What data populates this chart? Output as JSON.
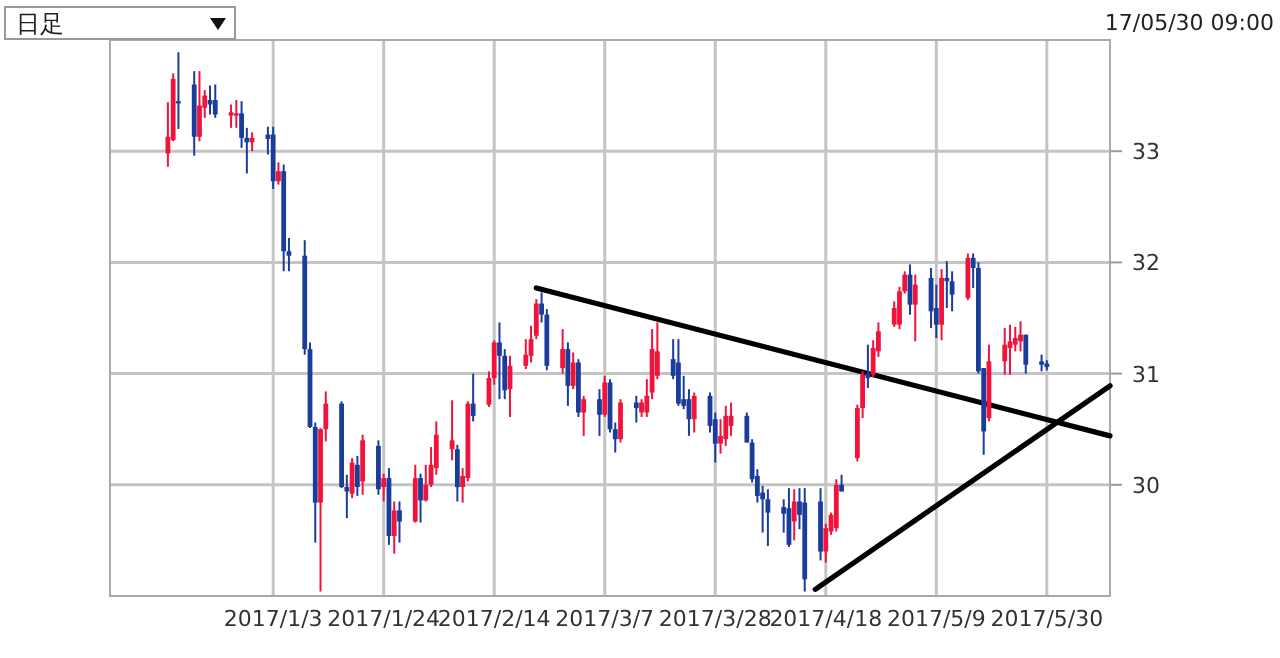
{
  "chart_data": {
    "type": "candlestick",
    "title": "日足",
    "subtitle": "17/05/30 09:00",
    "xlim": [
      "2016-12-03",
      "2017-06-11"
    ],
    "xticks": [
      {
        "value": "2017-01-03",
        "label": "2017/1/3"
      },
      {
        "value": "2017-01-24",
        "label": "2017/1/24"
      },
      {
        "value": "2017-02-14",
        "label": "2017/2/14"
      },
      {
        "value": "2017-03-07",
        "label": "2017/3/7"
      },
      {
        "value": "2017-03-28",
        "label": "2017/3/28"
      },
      {
        "value": "2017-04-18",
        "label": "2017/4/18"
      },
      {
        "value": "2017-05-09",
        "label": "2017/5/9"
      },
      {
        "value": "2017-05-30",
        "label": "2017/5/30"
      }
    ],
    "ylim": [
      29,
      34
    ],
    "yticks": [
      30,
      31,
      32,
      33
    ],
    "grid": true,
    "series": [
      {
        "x": [
          "2016-12-14",
          "2016-12-15",
          "2016-12-16",
          "2016-12-19",
          "2016-12-20",
          "2016-12-21",
          "2016-12-22",
          "2016-12-23",
          "2016-12-26",
          "2016-12-27",
          "2016-12-28",
          "2016-12-29",
          "2016-12-30",
          "2017-01-02",
          "2017-01-03",
          "2017-01-04",
          "2017-01-05",
          "2017-01-06",
          "2017-01-09",
          "2017-01-10",
          "2017-01-11",
          "2017-01-12",
          "2017-01-13",
          "2017-01-16",
          "2017-01-17",
          "2017-01-18",
          "2017-01-19",
          "2017-01-20",
          "2017-01-23",
          "2017-01-24",
          "2017-01-25",
          "2017-01-26",
          "2017-01-27",
          "2017-01-30",
          "2017-01-31",
          "2017-02-01",
          "2017-02-02",
          "2017-02-03",
          "2017-02-06",
          "2017-02-07",
          "2017-02-08",
          "2017-02-09",
          "2017-02-10",
          "2017-02-13",
          "2017-02-14",
          "2017-02-15",
          "2017-02-16",
          "2017-02-17",
          "2017-02-20",
          "2017-02-21",
          "2017-02-22",
          "2017-02-23",
          "2017-02-24",
          "2017-02-27",
          "2017-02-28",
          "2017-03-01",
          "2017-03-02",
          "2017-03-03",
          "2017-03-06",
          "2017-03-07",
          "2017-03-08",
          "2017-03-09",
          "2017-03-10",
          "2017-03-13",
          "2017-03-14",
          "2017-03-15",
          "2017-03-16",
          "2017-03-17",
          "2017-03-20",
          "2017-03-21",
          "2017-03-22",
          "2017-03-23",
          "2017-03-24",
          "2017-03-27",
          "2017-03-28",
          "2017-03-29",
          "2017-03-30",
          "2017-03-31",
          "2017-04-03",
          "2017-04-04",
          "2017-04-05",
          "2017-04-06",
          "2017-04-07",
          "2017-04-10",
          "2017-04-11",
          "2017-04-12",
          "2017-04-13",
          "2017-04-14",
          "2017-04-17",
          "2017-04-18",
          "2017-04-19",
          "2017-04-20",
          "2017-04-21",
          "2017-04-24",
          "2017-04-25",
          "2017-04-26",
          "2017-04-27",
          "2017-04-28",
          "2017-05-01",
          "2017-05-02",
          "2017-05-03",
          "2017-05-04",
          "2017-05-05",
          "2017-05-08",
          "2017-05-09",
          "2017-05-10",
          "2017-05-11",
          "2017-05-12",
          "2017-05-15",
          "2017-05-16",
          "2017-05-17",
          "2017-05-18",
          "2017-05-19",
          "2017-05-22",
          "2017-05-23",
          "2017-05-24",
          "2017-05-25",
          "2017-05-26",
          "2017-05-29",
          "2017-05-30"
        ],
        "ohlc": [
          [
            32.98,
            33.44,
            32.86,
            33.13
          ],
          [
            33.1,
            33.7,
            33.09,
            33.65
          ],
          [
            33.45,
            33.89,
            33.2,
            33.43
          ],
          [
            33.6,
            33.72,
            32.96,
            33.13
          ],
          [
            33.13,
            33.72,
            33.09,
            33.41
          ],
          [
            33.39,
            33.55,
            33.3,
            33.5
          ],
          [
            33.46,
            33.59,
            33.33,
            33.42
          ],
          [
            33.46,
            33.6,
            33.3,
            33.33
          ],
          [
            33.32,
            33.42,
            33.21,
            33.35
          ],
          [
            33.32,
            33.46,
            33.21,
            33.34
          ],
          [
            33.34,
            33.45,
            33.03,
            33.12
          ],
          [
            33.12,
            33.21,
            32.8,
            33.08
          ],
          [
            33.08,
            33.17,
            33.0,
            33.12
          ],
          [
            33.15,
            33.22,
            32.97,
            33.11
          ],
          [
            33.15,
            33.22,
            32.66,
            32.73
          ],
          [
            32.73,
            32.9,
            32.7,
            32.82
          ],
          [
            32.82,
            32.88,
            31.92,
            32.1
          ],
          [
            32.1,
            32.22,
            31.92,
            32.06
          ],
          [
            32.06,
            32.2,
            31.17,
            31.22
          ],
          [
            31.22,
            31.28,
            30.51,
            30.52
          ],
          [
            30.52,
            30.56,
            29.48,
            29.84
          ],
          [
            29.84,
            30.51,
            29.04,
            30.5
          ],
          [
            30.5,
            30.84,
            30.39,
            30.73
          ],
          [
            30.73,
            30.75,
            29.97,
            29.98
          ],
          [
            29.98,
            30.09,
            29.7,
            29.94
          ],
          [
            29.92,
            30.24,
            29.88,
            30.2
          ],
          [
            30.18,
            30.26,
            29.9,
            29.98
          ],
          [
            30.03,
            30.45,
            29.91,
            30.4
          ],
          [
            30.35,
            30.4,
            29.91,
            29.96
          ],
          [
            29.98,
            30.1,
            29.85,
            30.06
          ],
          [
            30.06,
            30.15,
            29.46,
            29.54
          ],
          [
            29.54,
            29.85,
            29.38,
            29.77
          ],
          [
            29.77,
            29.85,
            29.48,
            29.67
          ],
          [
            29.67,
            30.18,
            29.66,
            30.06
          ],
          [
            30.06,
            30.1,
            29.66,
            29.86
          ],
          [
            29.86,
            30.18,
            29.85,
            30.0
          ],
          [
            30.0,
            30.34,
            29.98,
            30.18
          ],
          [
            30.15,
            30.57,
            30.09,
            30.45
          ],
          [
            30.32,
            30.76,
            30.22,
            30.4
          ],
          [
            30.32,
            30.36,
            29.85,
            29.98
          ],
          [
            29.98,
            30.15,
            29.84,
            30.08
          ],
          [
            30.06,
            30.75,
            30.03,
            30.73
          ],
          [
            30.73,
            31.0,
            30.57,
            30.62
          ],
          [
            30.72,
            31.02,
            30.7,
            30.96
          ],
          [
            30.96,
            31.3,
            30.9,
            31.28
          ],
          [
            31.28,
            31.46,
            30.77,
            31.16
          ],
          [
            31.16,
            31.22,
            30.77,
            30.85
          ],
          [
            30.86,
            31.16,
            30.61,
            31.07
          ],
          [
            31.07,
            31.31,
            31.04,
            31.17
          ],
          [
            31.16,
            31.43,
            31.1,
            31.31
          ],
          [
            31.34,
            31.67,
            31.31,
            31.63
          ],
          [
            31.63,
            31.73,
            31.46,
            31.53
          ],
          [
            31.53,
            31.58,
            31.03,
            31.07
          ],
          [
            31.05,
            31.4,
            31.0,
            31.22
          ],
          [
            31.22,
            31.28,
            30.71,
            30.89
          ],
          [
            30.89,
            31.19,
            30.86,
            31.1
          ],
          [
            31.1,
            31.13,
            30.61,
            30.65
          ],
          [
            30.65,
            30.8,
            30.44,
            30.77
          ],
          [
            30.77,
            30.86,
            30.44,
            30.63
          ],
          [
            30.63,
            30.98,
            30.61,
            30.92
          ],
          [
            30.92,
            30.95,
            30.47,
            30.5
          ],
          [
            30.5,
            30.56,
            30.29,
            30.41
          ],
          [
            30.41,
            30.77,
            30.38,
            30.74
          ],
          [
            30.74,
            30.8,
            30.56,
            30.69
          ],
          [
            30.65,
            30.77,
            30.61,
            30.74
          ],
          [
            30.65,
            30.95,
            30.61,
            30.8
          ],
          [
            30.83,
            31.4,
            30.77,
            31.22
          ],
          [
            30.98,
            31.46,
            30.95,
            31.2
          ],
          [
            31.13,
            31.31,
            30.95,
            30.98
          ],
          [
            31.1,
            31.31,
            30.71,
            30.73
          ],
          [
            30.77,
            30.98,
            30.68,
            30.71
          ],
          [
            30.77,
            30.86,
            30.44,
            30.59
          ],
          [
            30.59,
            30.83,
            30.47,
            30.8
          ],
          [
            30.8,
            30.83,
            30.47,
            30.53
          ],
          [
            30.59,
            30.65,
            30.2,
            30.37
          ],
          [
            30.37,
            30.59,
            30.28,
            30.44
          ],
          [
            30.41,
            30.71,
            30.35,
            30.62
          ],
          [
            30.53,
            30.74,
            30.44,
            30.62
          ],
          [
            30.62,
            30.65,
            30.38,
            30.38
          ],
          [
            30.38,
            30.41,
            30.02,
            30.05
          ],
          [
            30.08,
            30.14,
            29.84,
            29.9
          ],
          [
            29.93,
            29.99,
            29.57,
            29.87
          ],
          [
            29.87,
            29.96,
            29.45,
            29.75
          ],
          [
            29.8,
            29.87,
            29.57,
            29.74
          ],
          [
            29.79,
            29.97,
            29.44,
            29.46
          ],
          [
            29.67,
            29.96,
            29.5,
            29.85
          ],
          [
            29.85,
            29.97,
            29.6,
            29.73
          ],
          [
            29.84,
            29.97,
            29.04,
            29.15
          ],
          [
            29.85,
            29.97,
            29.32,
            29.4
          ],
          [
            29.4,
            29.65,
            29.3,
            29.61
          ],
          [
            29.58,
            29.75,
            29.55,
            29.73
          ],
          [
            29.61,
            30.05,
            29.58,
            30.0
          ],
          [
            30.0,
            30.09,
            29.94,
            29.94
          ],
          [
            30.24,
            30.72,
            30.21,
            30.69
          ],
          [
            30.69,
            31.02,
            30.6,
            30.99
          ],
          [
            31.0,
            31.26,
            30.87,
            30.96
          ],
          [
            30.99,
            31.3,
            30.97,
            31.23
          ],
          [
            31.2,
            31.46,
            31.15,
            31.38
          ],
          [
            31.44,
            31.65,
            31.42,
            31.59
          ],
          [
            31.44,
            31.78,
            31.4,
            31.74
          ],
          [
            31.74,
            31.92,
            31.72,
            31.89
          ],
          [
            31.89,
            31.98,
            31.53,
            31.62
          ],
          [
            31.62,
            31.89,
            31.29,
            31.8
          ],
          [
            31.86,
            31.95,
            31.41,
            31.56
          ],
          [
            31.59,
            31.8,
            31.32,
            31.44
          ],
          [
            31.44,
            31.94,
            31.3,
            31.86
          ],
          [
            31.86,
            32.01,
            31.59,
            31.83
          ],
          [
            31.83,
            31.92,
            31.56,
            31.71
          ],
          [
            31.68,
            32.08,
            31.66,
            32.04
          ],
          [
            32.04,
            32.08,
            31.77,
            31.95
          ],
          [
            31.95,
            32.0,
            31.0,
            31.02
          ],
          [
            31.05,
            31.05,
            30.27,
            30.48
          ],
          [
            30.6,
            31.26,
            30.57,
            31.11
          ],
          [
            31.11,
            31.41,
            30.99,
            31.26
          ],
          [
            31.23,
            31.44,
            30.99,
            31.29
          ],
          [
            31.26,
            31.42,
            31.2,
            31.32
          ],
          [
            31.29,
            31.47,
            31.2,
            31.35
          ],
          [
            31.35,
            31.35,
            31.0,
            31.08
          ],
          [
            31.11,
            31.17,
            31.02,
            31.08
          ],
          [
            31.09,
            31.12,
            31.03,
            31.06
          ]
        ],
        "colors": [
          "#f0143c",
          "#f0143c",
          "#1a3d9c",
          "#1a3d9c",
          "#f0143c",
          "#f0143c",
          "#1a3d9c",
          "#1a3d9c",
          "#f0143c",
          "#f0143c",
          "#1a3d9c",
          "#1a3d9c",
          "#f0143c",
          "#1a3d9c",
          "#1a3d9c",
          "#f0143c",
          "#1a3d9c",
          "#1a3d9c",
          "#1a3d9c",
          "#1a3d9c",
          "#1a3d9c",
          "#f0143c",
          "#f0143c",
          "#1a3d9c",
          "#1a3d9c",
          "#f0143c",
          "#1a3d9c",
          "#f0143c",
          "#1a3d9c",
          "#f0143c",
          "#1a3d9c",
          "#f0143c",
          "#1a3d9c",
          "#f0143c",
          "#1a3d9c",
          "#f0143c",
          "#f0143c",
          "#f0143c",
          "#f0143c",
          "#1a3d9c",
          "#f0143c",
          "#f0143c",
          "#1a3d9c",
          "#f0143c",
          "#f0143c",
          "#1a3d9c",
          "#1a3d9c",
          "#f0143c",
          "#f0143c",
          "#f0143c",
          "#f0143c",
          "#1a3d9c",
          "#1a3d9c",
          "#f0143c",
          "#1a3d9c",
          "#f0143c",
          "#1a3d9c",
          "#f0143c",
          "#1a3d9c",
          "#f0143c",
          "#1a3d9c",
          "#1a3d9c",
          "#f0143c",
          "#1a3d9c",
          "#f0143c",
          "#f0143c",
          "#f0143c",
          "#f0143c",
          "#1a3d9c",
          "#1a3d9c",
          "#1a3d9c",
          "#1a3d9c",
          "#f0143c",
          "#1a3d9c",
          "#1a3d9c",
          "#f0143c",
          "#f0143c",
          "#f0143c",
          "#1a3d9c",
          "#1a3d9c",
          "#1a3d9c",
          "#1a3d9c",
          "#1a3d9c",
          "#1a3d9c",
          "#1a3d9c",
          "#f0143c",
          "#1a3d9c",
          "#1a3d9c",
          "#1a3d9c",
          "#f0143c",
          "#f0143c",
          "#f0143c",
          "#1a3d9c",
          "#f0143c",
          "#f0143c",
          "#1a3d9c",
          "#f0143c",
          "#f0143c",
          "#f0143c",
          "#f0143c",
          "#f0143c",
          "#1a3d9c",
          "#f0143c",
          "#1a3d9c",
          "#1a3d9c",
          "#f0143c",
          "#1a3d9c",
          "#1a3d9c",
          "#f0143c",
          "#1a3d9c",
          "#1a3d9c",
          "#1a3d9c",
          "#f0143c",
          "#f0143c",
          "#f0143c",
          "#f0143c",
          "#f0143c",
          "#1a3d9c",
          "#1a3d9c",
          "#1a3d9c"
        ]
      },
      {
        "type": "line",
        "color": "#000000",
        "x": [
          "2017-02-22",
          "2017-06-11"
        ],
        "values": [
          31.77,
          30.44
        ]
      },
      {
        "type": "line",
        "color": "#000000",
        "x": [
          "2017-04-16",
          "2017-06-11"
        ],
        "values": [
          29.06,
          30.89
        ]
      }
    ]
  }
}
